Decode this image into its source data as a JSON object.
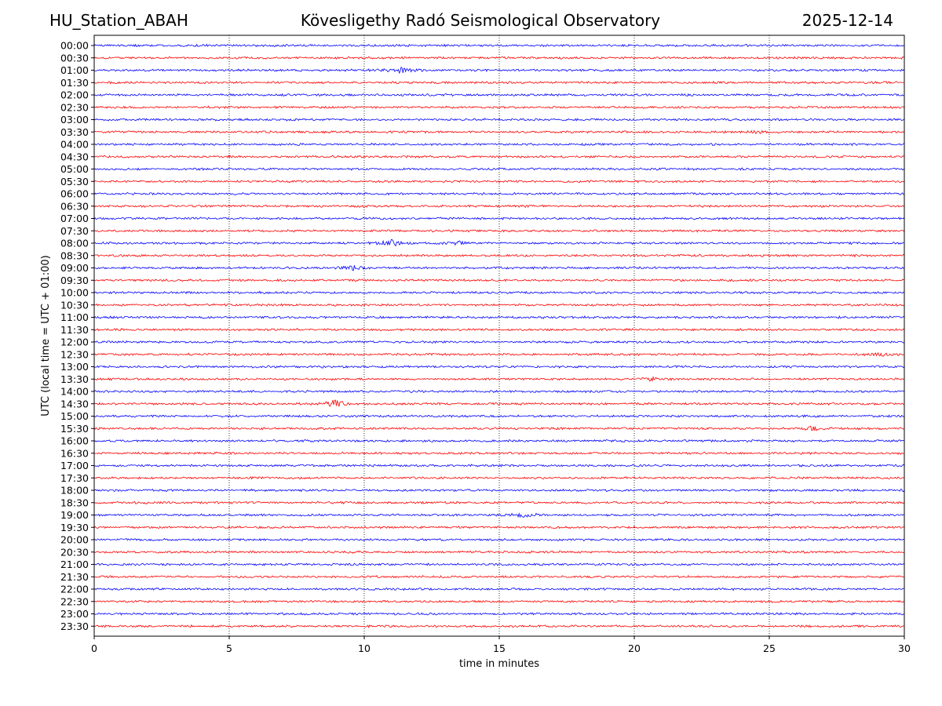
{
  "header": {
    "station": "HU_Station_ABAH",
    "title": "Kövesligethy Radó Seismological Observatory",
    "date": "2025-12-14"
  },
  "chart_data": {
    "type": "line",
    "title": "Kövesligethy Radó Seismological Observatory",
    "xlabel": "time in minutes",
    "ylabel": "UTC (local time = UTC + 01:00)",
    "xlim": [
      0,
      30
    ],
    "xticks": [
      0,
      5,
      10,
      15,
      20,
      25,
      30
    ],
    "grid": "vertical dotted at x ticks",
    "row_labels": [
      "00:00",
      "00:30",
      "01:00",
      "01:30",
      "02:00",
      "02:30",
      "03:00",
      "03:30",
      "04:00",
      "04:30",
      "05:00",
      "05:30",
      "06:00",
      "06:30",
      "07:00",
      "07:30",
      "08:00",
      "08:30",
      "09:00",
      "09:30",
      "10:00",
      "10:30",
      "11:00",
      "11:30",
      "12:00",
      "12:30",
      "13:00",
      "13:30",
      "14:00",
      "14:30",
      "15:00",
      "15:30",
      "16:00",
      "16:30",
      "17:00",
      "17:30",
      "18:00",
      "18:30",
      "19:00",
      "19:30",
      "20:00",
      "20:30",
      "21:00",
      "21:30",
      "22:00",
      "22:30",
      "23:00",
      "23:30"
    ],
    "colors": [
      "#0000ff",
      "#ff0000"
    ],
    "noise_level": 0.35,
    "events": [
      {
        "row": "01:00",
        "minute": 11.3,
        "amplitude": 1.0
      },
      {
        "row": "08:00",
        "minute": 11.0,
        "amplitude": 1.1
      },
      {
        "row": "08:00",
        "minute": 13.3,
        "amplitude": 0.8
      },
      {
        "row": "09:00",
        "minute": 9.6,
        "amplitude": 0.6
      },
      {
        "row": "14:30",
        "minute": 8.9,
        "amplitude": 1.3
      },
      {
        "row": "19:00",
        "minute": 15.9,
        "amplitude": 0.8
      },
      {
        "row": "03:30",
        "minute": 24.6,
        "amplitude": 0.6
      },
      {
        "row": "15:30",
        "minute": 26.6,
        "amplitude": 0.5
      },
      {
        "row": "12:30",
        "minute": 29.1,
        "amplitude": 0.5
      },
      {
        "row": "13:30",
        "minute": 20.7,
        "amplitude": 0.5
      }
    ]
  }
}
